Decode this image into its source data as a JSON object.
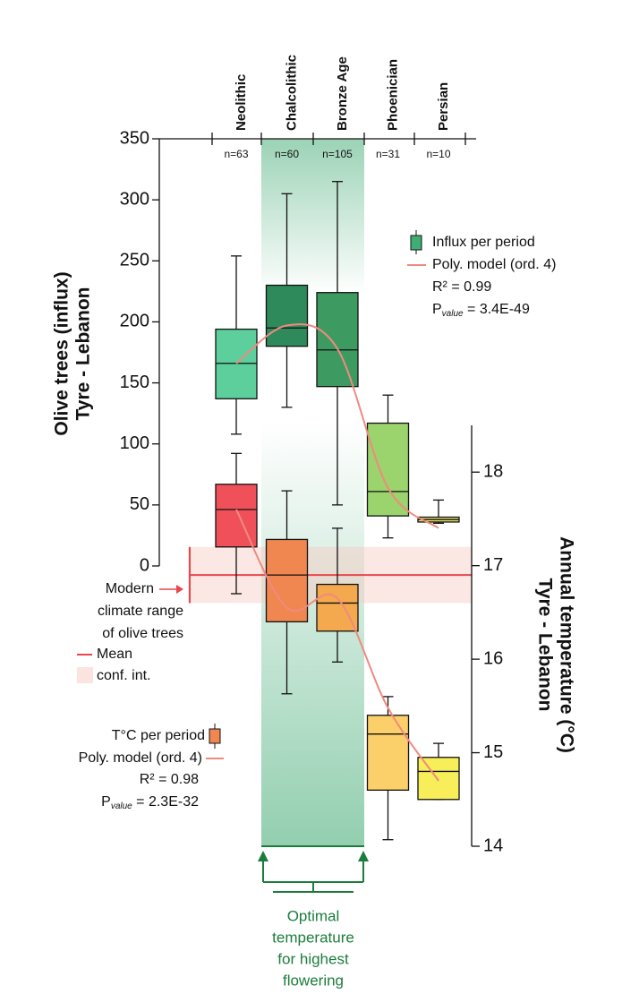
{
  "chart_data": {
    "type": "box",
    "categories": [
      "Neolithic",
      "Chalcolithic",
      "Bronze Age",
      "Phoenician",
      "Persian"
    ],
    "n_labels": [
      "n=63",
      "n=60",
      "n=105",
      "n=31",
      "n=10"
    ],
    "ylabel": [
      "Olive trees (influx)",
      "Tyre - Lebanon"
    ],
    "ylim": [
      0,
      350
    ],
    "yticks": [
      0,
      50,
      100,
      150,
      200,
      250,
      300,
      350
    ],
    "y2label": [
      "Annual temperature (°C)",
      "Tyre - Lebanon"
    ],
    "y2lim": [
      14,
      18.5
    ],
    "y2ticks": [
      14,
      15,
      16,
      17,
      18
    ],
    "series": [
      {
        "name": "Influx per period",
        "axis": "y",
        "color": "#3fae74",
        "colors": [
          "#5ccf9c",
          "#2f8a5b",
          "#3d9b62",
          "#9bd36c",
          "#e9e36d"
        ],
        "low": [
          108,
          130,
          50,
          23,
          35
        ],
        "q1": [
          137,
          180,
          147,
          41,
          36
        ],
        "median": [
          166,
          195,
          177,
          61,
          38
        ],
        "q3": [
          194,
          230,
          224,
          117,
          40
        ],
        "high": [
          254,
          305,
          315,
          140,
          54
        ],
        "fit": {
          "name": "Poly. model (ord. 4)",
          "color": "#f08a80",
          "values": [
            166,
            197,
            178,
            64,
            31
          ]
        },
        "r2": "R² = 0.99",
        "p_main": "P",
        "p_sub": "value",
        "p_rest": " = 3.4E-49"
      },
      {
        "name": "T°C per period",
        "axis": "y2",
        "color": "#f08650",
        "colors": [
          "#f0505a",
          "#f08650",
          "#f4a94e",
          "#fbd06a",
          "#f8ee5a"
        ],
        "low": [
          16.7,
          15.63,
          15.97,
          14.07,
          14.5
        ],
        "q1": [
          17.2,
          16.4,
          16.3,
          14.6,
          14.5
        ],
        "median": [
          17.6,
          16.9,
          16.6,
          15.2,
          14.8
        ],
        "q3": [
          17.87,
          17.28,
          16.8,
          15.4,
          14.95
        ],
        "high": [
          18.2,
          17.8,
          17.4,
          15.6,
          15.1
        ],
        "fit": {
          "name": "Poly. model (ord. 4)",
          "color": "#f08a80",
          "values": [
            17.6,
            16.55,
            16.65,
            15.48,
            14.7
          ]
        },
        "r2": "R² = 0.98",
        "p_main": "P",
        "p_sub": "value",
        "p_rest": " = 2.3E-32"
      }
    ],
    "modern_range": {
      "mean": 16.9,
      "ci": [
        16.6,
        17.2
      ],
      "color": "#e8474c",
      "label": [
        "Modern",
        "climate range",
        "of olive trees"
      ],
      "mean_label": "Mean",
      "ci_label": "conf. int."
    },
    "optimal_label": [
      "Optimal",
      "temperature",
      "for highest",
      "flowering"
    ]
  }
}
